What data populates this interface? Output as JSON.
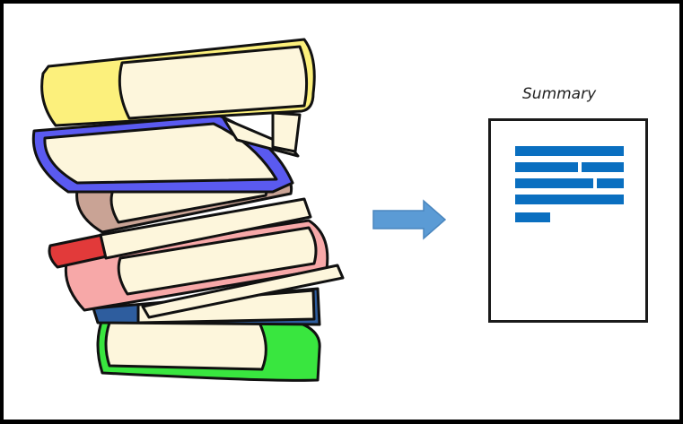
{
  "summary": {
    "label": "Summary",
    "line_color": "#0a6fc0",
    "border_color": "#1a1a1a"
  },
  "arrow": {
    "color": "#5b9bd5",
    "icon": "right-arrow-icon"
  },
  "books": {
    "icon": "book-stack-icon",
    "cover_colors": [
      "#fcf07c",
      "#5a5af0",
      "#c9a395",
      "#e23a3a",
      "#f7a8a8",
      "#2e5d9e",
      "#39e63f"
    ],
    "page_color": "#fdf6dc"
  }
}
